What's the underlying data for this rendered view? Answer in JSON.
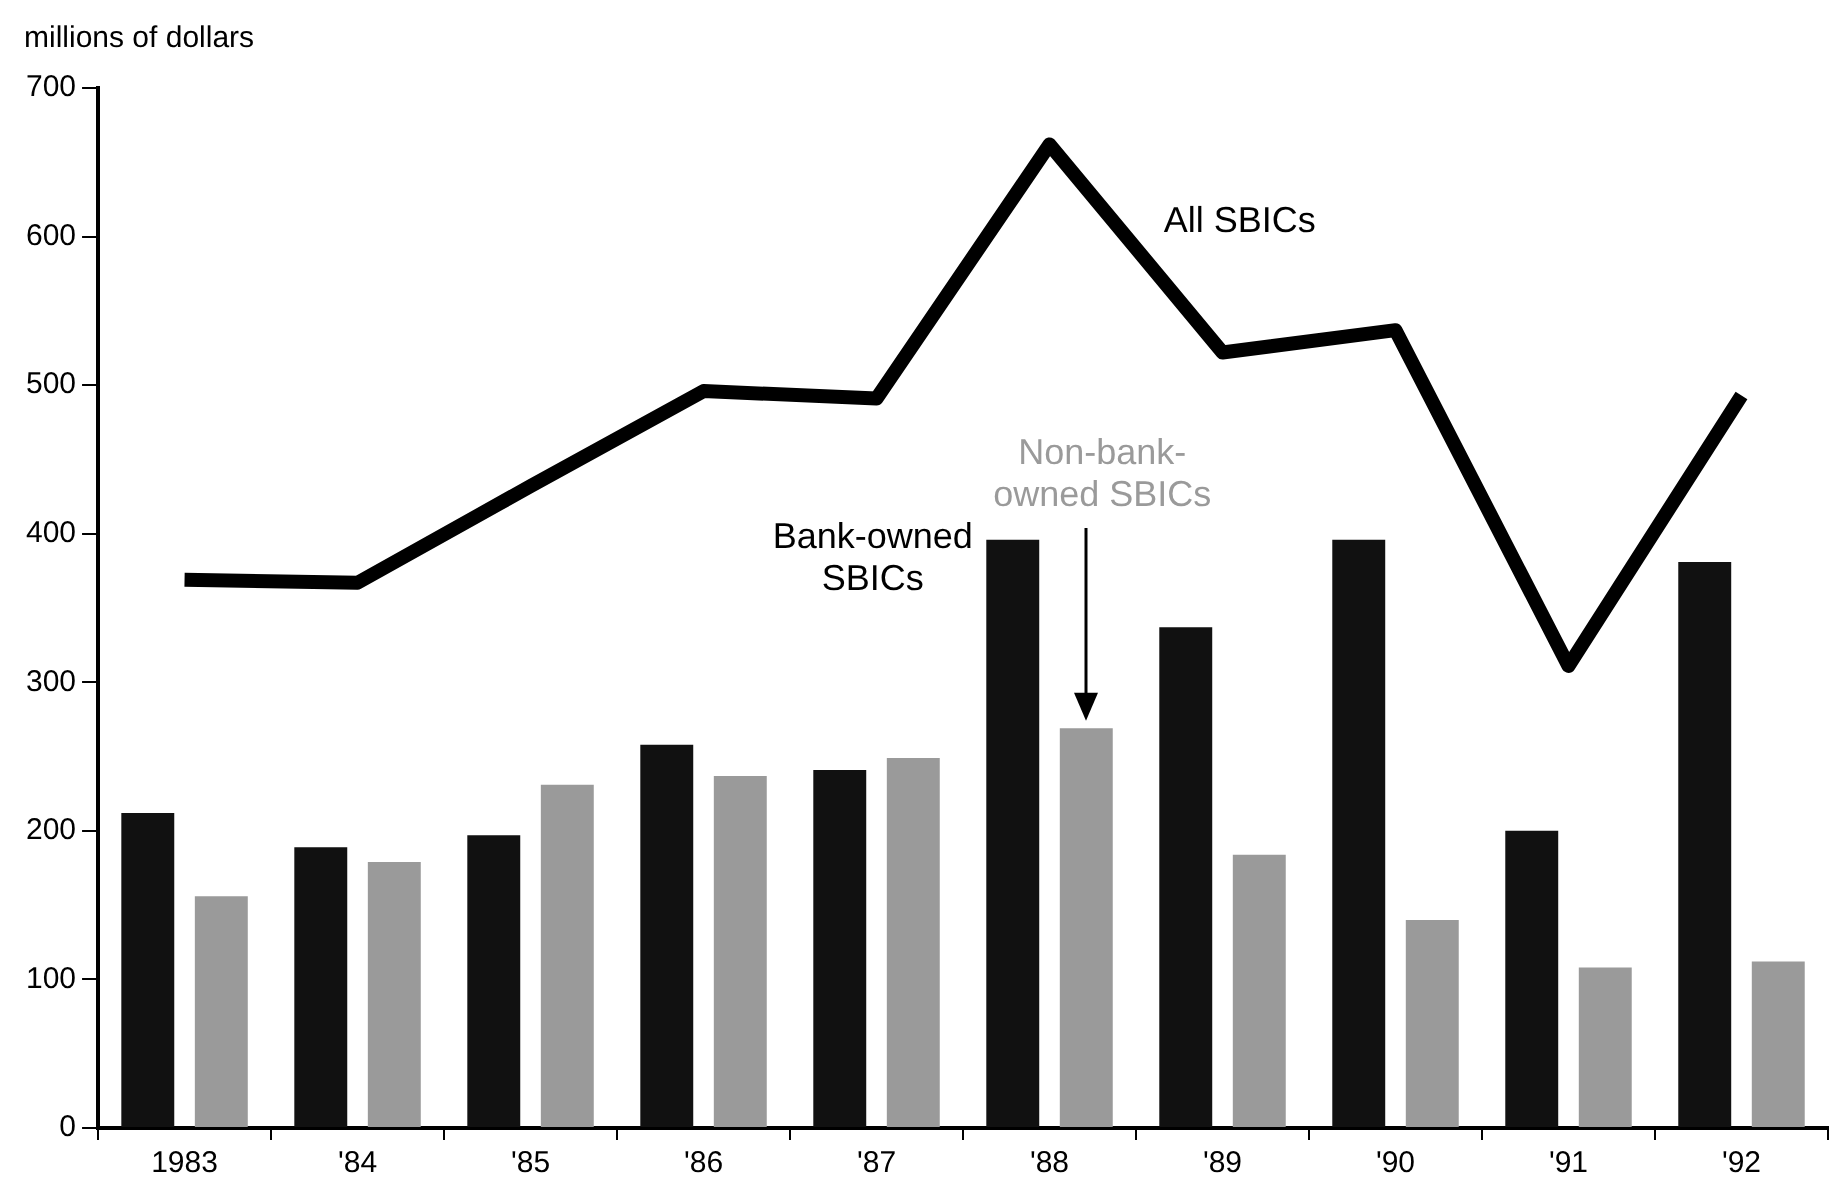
{
  "chart_data": {
    "type": "bar",
    "ylabel": "millions of dollars",
    "categories": [
      "1983",
      "'84",
      "'85",
      "'86",
      "'87",
      "'88",
      "'89",
      "'90",
      "'91",
      "'92"
    ],
    "series": [
      {
        "name": "Bank-owned SBICs",
        "color": "#111111",
        "values": [
          212,
          189,
          197,
          258,
          241,
          396,
          337,
          396,
          200,
          381
        ]
      },
      {
        "name": "Non-bank-owned SBICs",
        "color": "#9a9a9a",
        "values": [
          156,
          179,
          231,
          237,
          249,
          269,
          184,
          140,
          108,
          112
        ]
      },
      {
        "name": "All SBICs",
        "type": "line",
        "color": "#000000",
        "values": [
          369,
          367,
          432,
          496,
          491,
          662,
          522,
          537,
          311,
          493
        ]
      }
    ],
    "ylim": [
      0,
      700
    ],
    "yticks": [
      0,
      100,
      200,
      300,
      400,
      500,
      600,
      700
    ],
    "grid": false,
    "legend": false,
    "marker": "none"
  }
}
